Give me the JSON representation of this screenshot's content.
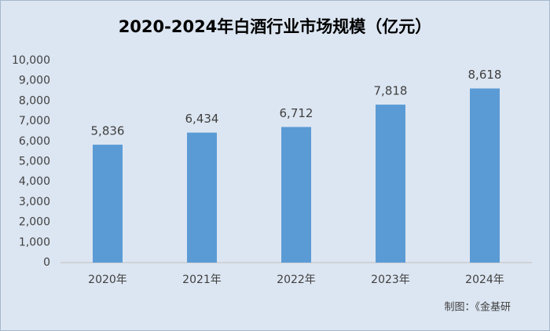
{
  "chart_data": {
    "type": "bar",
    "title": "2020-2024年白酒行业市场规模（亿元）",
    "categories": [
      "2020年",
      "2021年",
      "2022年",
      "2023年",
      "2024年"
    ],
    "values": [
      5836,
      6434,
      6712,
      7818,
      8618
    ],
    "value_labels": [
      "5,836",
      "6,434",
      "6,712",
      "7,818",
      "8,618"
    ],
    "color": "#5b9bd5",
    "ylim": [
      0,
      10000
    ],
    "yticks": [
      0,
      {
        "value": 1000,
        "label": "1,000"
      },
      {
        "value": 2000,
        "label": "2,000"
      },
      {
        "value": 3000,
        "label": "3,000"
      },
      {
        "value": 4000,
        "label": "4,000"
      },
      {
        "value": 5000,
        "label": "5,000"
      },
      {
        "value": 6000,
        "label": "6,000"
      },
      {
        "value": 7000,
        "label": "7,000"
      },
      {
        "value": 8000,
        "label": "8,000"
      },
      {
        "value": 9000,
        "label": "9,000"
      },
      {
        "value": 10000,
        "label": "10,000"
      }
    ],
    "grid": false,
    "source": "制图：《金基研"
  }
}
